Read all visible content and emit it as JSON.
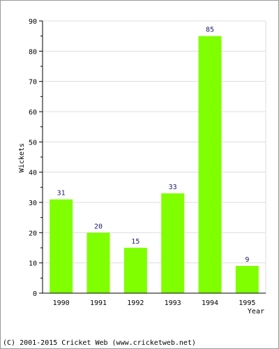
{
  "chart_data": {
    "type": "bar",
    "categories": [
      "1990",
      "1991",
      "1992",
      "1993",
      "1994",
      "1995"
    ],
    "values": [
      31,
      20,
      15,
      33,
      85,
      9
    ],
    "xlabel": "Year",
    "ylabel": "Wickets",
    "ylim": [
      0,
      90
    ],
    "yticks": [
      0,
      10,
      20,
      30,
      40,
      50,
      60,
      70,
      80,
      90
    ],
    "grid": true,
    "legend": "none",
    "colors": {
      "bar": "#80ff00",
      "grid": "#dddddd",
      "axis": "#000000",
      "data_label": "#1a1a66"
    }
  },
  "footer": {
    "copyright": "(C) 2001-2015 Cricket Web (www.cricketweb.net)"
  }
}
